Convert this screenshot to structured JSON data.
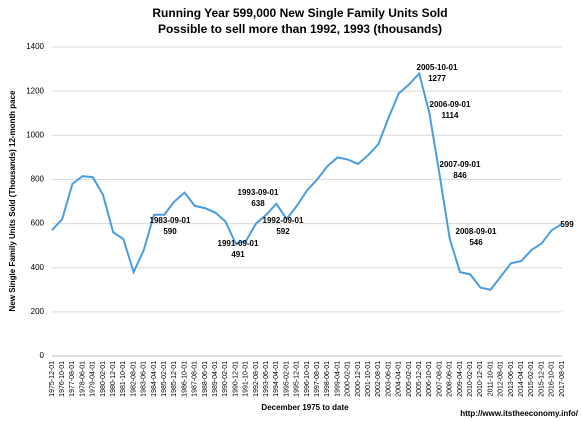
{
  "chart_data": {
    "type": "line",
    "title": "Running Year 599,000 New Single Family Units Sold",
    "subtitle": "Possible to sell more than 1992, 1993 (thousands)",
    "y_label": "New Single Family Units Sold (Thousands) 12-month pace",
    "x_label": "December 1975 to date",
    "source": "http://www.itstheeconomy.info/",
    "categories": [
      "1975-12-01",
      "1976-10-01",
      "1977-08-01",
      "1978-06-01",
      "1979-04-01",
      "1980-02-01",
      "1980-12-01",
      "1981-10-01",
      "1982-08-01",
      "1983-06-01",
      "1984-04-01",
      "1985-02-01",
      "1985-12-01",
      "1986-10-01",
      "1987-08-01",
      "1988-06-01",
      "1989-04-01",
      "1990-02-01",
      "1990-12-01",
      "1991-10-01",
      "1992-08-01",
      "1993-06-01",
      "1994-04-01",
      "1995-02-01",
      "1995-12-01",
      "1996-10-01",
      "1997-08-01",
      "1998-06-01",
      "1999-04-01",
      "2000-02-01",
      "2000-12-01",
      "2001-10-01",
      "2002-08-01",
      "2003-06-01",
      "2004-04-01",
      "2005-02-01",
      "2005-12-01",
      "2006-10-01",
      "2007-08-01",
      "2008-06-01",
      "2009-04-01",
      "2010-02-01",
      "2010-12-01",
      "2011-10-01",
      "2012-08-01",
      "2013-06-01",
      "2014-04-01",
      "2015-02-01",
      "2015-12-01",
      "2016-10-01",
      "2017-08-01"
    ],
    "series": [
      {
        "name": "New Single Family Units Sold",
        "color": "#4a9de0",
        "values": [
          570,
          620,
          780,
          815,
          810,
          730,
          560,
          530,
          380,
          480,
          640,
          640,
          700,
          740,
          680,
          670,
          650,
          610,
          510,
          520,
          600,
          640,
          690,
          620,
          680,
          750,
          800,
          860,
          900,
          890,
          870,
          910,
          960,
          1080,
          1190,
          1230,
          1280,
          1100,
          820,
          530,
          380,
          370,
          310,
          300,
          360,
          420,
          430,
          480,
          510,
          570,
          599
        ]
      }
    ],
    "ylim": [
      0,
      1400
    ],
    "yticks": [
      0,
      200,
      400,
      600,
      800,
      1000,
      1200,
      1400
    ],
    "grid": true,
    "annotations": [
      {
        "date": "1983-09-01",
        "value": 590
      },
      {
        "date": "1993-09-01",
        "value": 638
      },
      {
        "date": "1992-09-01",
        "value": 592
      },
      {
        "date": "1991-09-01",
        "value": 491
      },
      {
        "date": "2005-10-01",
        "value": 1277
      },
      {
        "date": "2006-09-01",
        "value": 1114
      },
      {
        "date": "2007-09-01",
        "value": 846
      },
      {
        "date": "2008-09-01",
        "value": 546
      },
      {
        "value": 599
      }
    ]
  }
}
